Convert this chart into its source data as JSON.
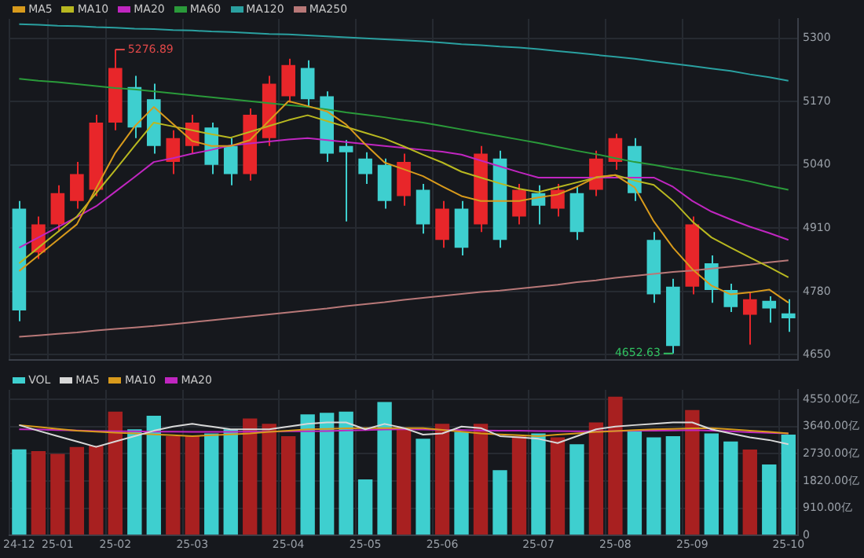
{
  "chart_data": [
    {
      "type": "candlestick",
      "categories": [
        null,
        null,
        null,
        null,
        null,
        null,
        null,
        null,
        null,
        null,
        null,
        null,
        null,
        null,
        null,
        null,
        null,
        null,
        null,
        null,
        null,
        null,
        null,
        null,
        null,
        null,
        null,
        null,
        null,
        null,
        null,
        null,
        null,
        null,
        null,
        null,
        null,
        null,
        null,
        null,
        null
      ],
      "ohlc": [
        [
          4950,
          4966,
          4719,
          4741
        ],
        [
          4860,
          4934,
          4847,
          4918
        ],
        [
          4918,
          4998,
          4902,
          4982
        ],
        [
          4966,
          5046,
          4950,
          5021
        ],
        [
          4989,
          5143,
          4976,
          5127
        ],
        [
          5127,
          5276.89,
          5111,
          5239
        ],
        [
          5200,
          5223,
          5095,
          5117
        ],
        [
          5175,
          5207,
          5063,
          5079
        ],
        [
          5046,
          5111,
          5021,
          5095
        ],
        [
          5079,
          5143,
          5063,
          5127
        ],
        [
          5117,
          5127,
          5021,
          5040
        ],
        [
          5079,
          5095,
          4998,
          5021
        ],
        [
          5021,
          5156,
          5008,
          5143
        ],
        [
          5095,
          5223,
          5079,
          5207
        ],
        [
          5181,
          5258,
          5168,
          5245
        ],
        [
          5239,
          5255,
          5159,
          5175
        ],
        [
          5181,
          5191,
          5046,
          5063
        ],
        [
          5079,
          5091,
          4924,
          5066
        ],
        [
          5053,
          5066,
          5001,
          5021
        ],
        [
          5040,
          5053,
          4950,
          4966
        ],
        [
          4976,
          5063,
          4956,
          5046
        ],
        [
          4989,
          5001,
          4899,
          4918
        ],
        [
          4886,
          4966,
          4870,
          4950
        ],
        [
          4950,
          4966,
          4854,
          4870
        ],
        [
          4918,
          5079,
          4902,
          5063
        ],
        [
          5053,
          5069,
          4870,
          4886
        ],
        [
          4934,
          5001,
          4918,
          4989
        ],
        [
          4982,
          4998,
          4918,
          4956
        ],
        [
          4950,
          5001,
          4934,
          4989
        ],
        [
          4982,
          4995,
          4886,
          4902
        ],
        [
          4989,
          5069,
          4976,
          5053
        ],
        [
          5046,
          5104,
          5030,
          5095
        ],
        [
          5079,
          5095,
          4966,
          4982
        ],
        [
          4886,
          4902,
          4757,
          4774
        ],
        [
          4790,
          4806,
          4652.63,
          4668
        ],
        [
          4790,
          4934,
          4774,
          4918
        ],
        [
          4838,
          4854,
          4757,
          4783
        ],
        [
          4783,
          4796,
          4738,
          4748
        ],
        [
          4732,
          4780,
          4671,
          4764
        ],
        [
          4761,
          4770,
          4716,
          4745
        ],
        [
          4735,
          4764,
          4697,
          4725
        ]
      ],
      "colors": [
        "#3ecfcf",
        "#e8262a",
        "#e8262a",
        "#e8262a",
        "#e8262a",
        "#e8262a",
        "#3ecfcf",
        "#3ecfcf",
        "#e8262a",
        "#e8262a",
        "#3ecfcf",
        "#3ecfcf",
        "#e8262a",
        "#e8262a",
        "#e8262a",
        "#3ecfcf",
        "#3ecfcf",
        "#3ecfcf",
        "#3ecfcf",
        "#3ecfcf",
        "#e8262a",
        "#3ecfcf",
        "#e8262a",
        "#3ecfcf",
        "#e8262a",
        "#3ecfcf",
        "#e8262a",
        "#3ecfcf",
        "#e8262a",
        "#3ecfcf",
        "#e8262a",
        "#e8262a",
        "#3ecfcf",
        "#3ecfcf",
        "#3ecfcf",
        "#e8262a",
        "#3ecfcf",
        "#3ecfcf",
        "#e8262a",
        "#3ecfcf",
        "#3ecfcf"
      ],
      "series": [
        {
          "name": "MA5",
          "type": "line",
          "color": "#d89a1c",
          "values": [
            4822,
            4854,
            4886,
            4918,
            4992,
            5065,
            5119,
            5159,
            5124,
            5089,
            5079,
            5079,
            5091,
            5131,
            5171,
            5161,
            5150,
            5123,
            5082,
            5045,
            5031,
            5017,
            4996,
            4976,
            4966,
            4966,
            4966,
            4973,
            4979,
            4995,
            5015,
            5019,
            4994,
            4924,
            4870,
            4826,
            4792,
            4774,
            4778,
            4784,
            4757
          ]
        },
        {
          "name": "MA10",
          "type": "line",
          "color": "#b8b820",
          "values": [
            4838,
            4870,
            4902,
            4934,
            4982,
            5030,
            5079,
            5127,
            5119,
            5111,
            5103,
            5096,
            5108,
            5120,
            5132,
            5142,
            5130,
            5118,
            5106,
            5094,
            5078,
            5061,
            5045,
            5026,
            5014,
            5002,
            4991,
            4984,
            4994,
            5004,
            5014,
            5019,
            5008,
            4999,
            4966,
            4924,
            4891,
            4870,
            4850,
            4830,
            4809
          ]
        },
        {
          "name": "MA20",
          "type": "line",
          "color": "#c026c0",
          "values": [
            4870,
            4891,
            4912,
            4933,
            4955,
            4985,
            5015,
            5046,
            5054,
            5063,
            5071,
            5080,
            5084,
            5088,
            5092,
            5095,
            5091,
            5087,
            5083,
            5079,
            5075,
            5071,
            5067,
            5061,
            5049,
            5037,
            5025,
            5014,
            5014,
            5014,
            5014,
            5014,
            5014,
            5014,
            4995,
            4966,
            4944,
            4928,
            4913,
            4900,
            4886
          ]
        },
        {
          "name": "MA60",
          "type": "line",
          "color": "#2a9a3a",
          "values": [
            5217,
            5213,
            5210,
            5206,
            5202,
            5198,
            5195,
            5191,
            5187,
            5183,
            5179,
            5175,
            5171,
            5167,
            5163,
            5159,
            5154,
            5148,
            5143,
            5138,
            5132,
            5127,
            5120,
            5113,
            5106,
            5099,
            5092,
            5085,
            5077,
            5069,
            5062,
            5054,
            5046,
            5040,
            5033,
            5027,
            5020,
            5014,
            5006,
            4997,
            4989
          ]
        },
        {
          "name": "MA120",
          "type": "line",
          "color": "#2aa0a0",
          "values": [
            5329,
            5328,
            5326,
            5325,
            5323,
            5322,
            5320,
            5319,
            5317,
            5316,
            5314,
            5313,
            5311,
            5309,
            5308,
            5306,
            5304,
            5302,
            5300,
            5298,
            5296,
            5294,
            5291,
            5288,
            5286,
            5283,
            5281,
            5278,
            5274,
            5270,
            5266,
            5262,
            5258,
            5253,
            5248,
            5243,
            5238,
            5233,
            5226,
            5220,
            5213
          ]
        },
        {
          "name": "MA250",
          "type": "line",
          "color": "#b87878",
          "values": [
            4687,
            4690,
            4693,
            4696,
            4700,
            4703,
            4706,
            4709,
            4713,
            4717,
            4721,
            4725,
            4729,
            4733,
            4737,
            4741,
            4745,
            4750,
            4754,
            4758,
            4763,
            4767,
            4771,
            4775,
            4779,
            4782,
            4786,
            4790,
            4794,
            4799,
            4803,
            4808,
            4812,
            4816,
            4820,
            4823,
            4827,
            4831,
            4835,
            4840,
            4844
          ]
        }
      ],
      "ylim": [
        4640,
        5340
      ],
      "yticks": [
        4650,
        4780,
        4910,
        5040,
        5170,
        5300
      ],
      "tick_labels": "y",
      "grid": true,
      "legend": "top left",
      "marker": "none",
      "annotations": [
        "5276.89",
        "4652.63"
      ]
    },
    {
      "type": "bar",
      "categories": [
        "24-12",
        null,
        "25-01",
        null,
        null,
        "25-02",
        null,
        null,
        null,
        "25-03",
        null,
        null,
        null,
        null,
        "25-04",
        null,
        null,
        null,
        "25-05",
        null,
        null,
        null,
        "25-06",
        null,
        null,
        null,
        null,
        "25-07",
        null,
        null,
        null,
        "25-08",
        null,
        null,
        null,
        "25-09",
        null,
        null,
        null,
        null,
        "25-10"
      ],
      "series": [
        {
          "name": "VOL",
          "type": "bar",
          "colors": [
            "#3ecfcf",
            "#a82020",
            "#a82020",
            "#a82020",
            "#a82020",
            "#a82020",
            "#3ecfcf",
            "#3ecfcf",
            "#a82020",
            "#a82020",
            "#3ecfcf",
            "#3ecfcf",
            "#a82020",
            "#a82020",
            "#a82020",
            "#3ecfcf",
            "#3ecfcf",
            "#3ecfcf",
            "#3ecfcf",
            "#3ecfcf",
            "#a82020",
            "#3ecfcf",
            "#a82020",
            "#3ecfcf",
            "#a82020",
            "#3ecfcf",
            "#a82020",
            "#3ecfcf",
            "#a82020",
            "#3ecfcf",
            "#a82020",
            "#a82020",
            "#3ecfcf",
            "#3ecfcf",
            "#3ecfcf",
            "#a82020",
            "#3ecfcf",
            "#3ecfcf",
            "#a82020",
            "#3ecfcf",
            "#3ecfcf"
          ],
          "values": [
            2880,
            2820,
            2730,
            2960,
            3000,
            4140,
            3550,
            4000,
            3320,
            3320,
            3410,
            3550,
            3910,
            3730,
            3320,
            4050,
            4100,
            4140,
            1870,
            4460,
            3550,
            3230,
            3730,
            3460,
            3730,
            2180,
            3320,
            3410,
            3280,
            3050,
            3780,
            4640,
            3500,
            3280,
            3320,
            4190,
            3410,
            3140,
            2870,
            2370,
            3370
          ]
        },
        {
          "name": "MA5",
          "type": "line",
          "color": "#d8d8d8",
          "values": [
            3690,
            3500,
            3320,
            3140,
            2960,
            3140,
            3320,
            3500,
            3640,
            3730,
            3640,
            3550,
            3550,
            3550,
            3640,
            3730,
            3780,
            3780,
            3550,
            3730,
            3590,
            3370,
            3410,
            3640,
            3590,
            3320,
            3280,
            3230,
            3090,
            3320,
            3550,
            3640,
            3690,
            3730,
            3780,
            3780,
            3550,
            3410,
            3280,
            3190,
            3050
          ]
        },
        {
          "name": "MA10",
          "type": "line",
          "color": "#d89a1c",
          "values": [
            3690,
            3630,
            3560,
            3500,
            3470,
            3440,
            3410,
            3380,
            3350,
            3320,
            3350,
            3380,
            3410,
            3460,
            3500,
            3550,
            3560,
            3580,
            3590,
            3590,
            3590,
            3590,
            3530,
            3470,
            3410,
            3380,
            3350,
            3320,
            3370,
            3410,
            3460,
            3490,
            3520,
            3550,
            3560,
            3580,
            3590,
            3550,
            3500,
            3460,
            3410
          ]
        },
        {
          "name": "MA20",
          "type": "line",
          "color": "#c026c0",
          "values": [
            3550,
            3540,
            3520,
            3510,
            3490,
            3480,
            3480,
            3470,
            3470,
            3460,
            3460,
            3460,
            3470,
            3470,
            3480,
            3480,
            3490,
            3510,
            3520,
            3540,
            3550,
            3540,
            3530,
            3520,
            3510,
            3500,
            3500,
            3490,
            3490,
            3480,
            3480,
            3490,
            3500,
            3500,
            3510,
            3520,
            3500,
            3480,
            3450,
            3430,
            3410
          ]
        }
      ],
      "ylim": [
        0,
        4870
      ],
      "yticks": [
        0,
        {
          "value": 910,
          "label": "910.00亿"
        },
        {
          "value": 1820,
          "label": "1820.00亿"
        },
        {
          "value": 2730,
          "label": "2730.00亿"
        },
        {
          "value": 3640,
          "label": "3640.00亿"
        },
        {
          "value": 4550,
          "label": "4550.00亿"
        }
      ],
      "grid": true,
      "legend": "top left",
      "marker": "none"
    }
  ]
}
